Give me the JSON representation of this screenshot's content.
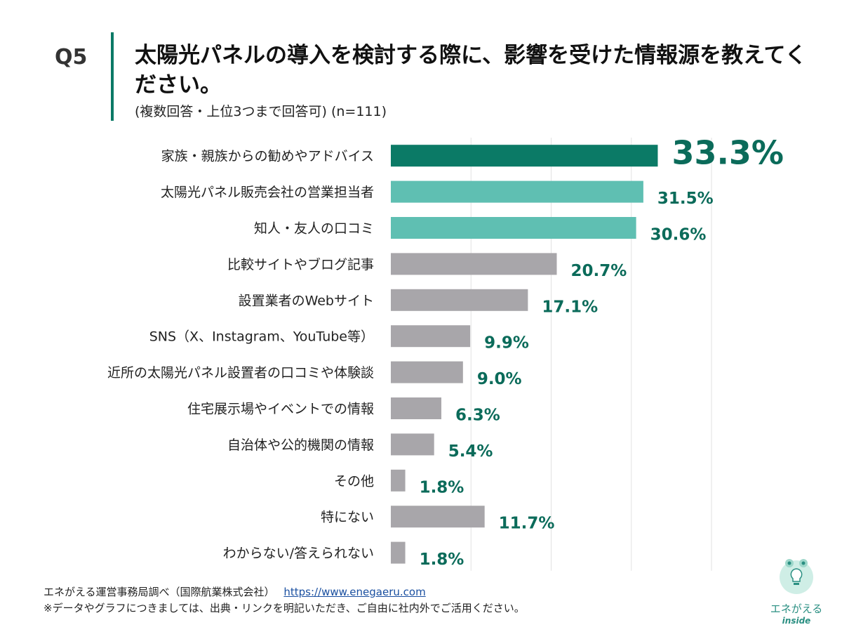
{
  "question": {
    "number": "Q5",
    "title": "太陽光パネルの導入を検討する際に、影響を受けた情報源を教えてください。",
    "subtitle": "(複数回答・上位3つまで回答可)  (n=111)"
  },
  "colors": {
    "accent": "#0b7a66",
    "top1": "#0b7a66",
    "top3": "#5fbfb2",
    "other": "#a8a6aa",
    "value_text": "#0b6b5a"
  },
  "chart_data": {
    "type": "bar",
    "orientation": "horizontal",
    "categories": [
      "家族・親族からの勧めやアドバイス",
      "太陽光パネル販売会社の営業担当者",
      "知人・友人の口コミ",
      "比較サイトやブログ記事",
      "設置業者のWebサイト",
      "SNS（X、Instagram、YouTube等）",
      "近所の太陽光パネル設置者の口コミや体験談",
      "住宅展示場やイベントでの情報",
      "自治体や公的機関の情報",
      "その他",
      "特にない",
      "わからない/答えられない"
    ],
    "values": [
      33.3,
      31.5,
      30.6,
      20.7,
      17.1,
      9.9,
      9.0,
      6.3,
      5.4,
      1.8,
      11.7,
      1.8
    ],
    "value_labels": [
      "33.3%",
      "31.5%",
      "30.6%",
      "20.7%",
      "17.1%",
      "9.9%",
      "9.0%",
      "6.3%",
      "5.4%",
      "1.8%",
      "11.7%",
      "1.8%"
    ],
    "xlim": [
      0,
      40
    ],
    "grid": true
  },
  "footer": {
    "source": "エネがえる運営事務局調べ（国際航業株式会社）",
    "link": "https://www.enegaeru.com",
    "note": "※データやグラフにつきましては、出典・リンクを明記いただき、ご自由に社内外でご活用ください。"
  },
  "logo": {
    "text": "エネがえる",
    "subtext": "inside"
  }
}
